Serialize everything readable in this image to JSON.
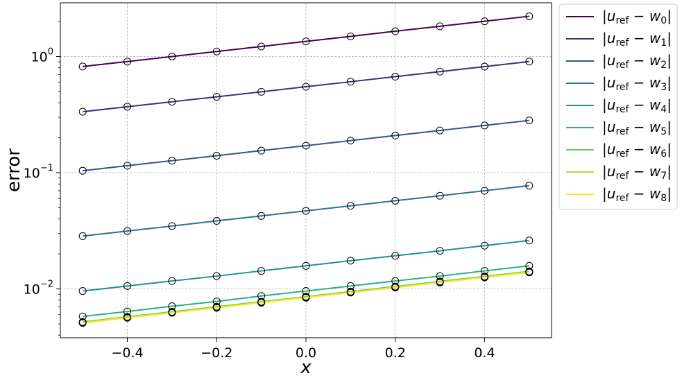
{
  "chart_data": {
    "type": "line",
    "xlabel": "x",
    "ylabel": "error",
    "yscale": "log",
    "xlim": [
      -0.55,
      0.55
    ],
    "ylim": [
      0.0038,
      2.9
    ],
    "grid": true,
    "legend_position": "outside-right",
    "xticks": [
      {
        "value": -0.4,
        "label": "−0.4"
      },
      {
        "value": -0.2,
        "label": "−0.2"
      },
      {
        "value": 0.0,
        "label": "0.0"
      },
      {
        "value": 0.2,
        "label": "0.2"
      },
      {
        "value": 0.4,
        "label": "0.4"
      }
    ],
    "yticks": [
      {
        "value": 0.01,
        "mantissa": "10",
        "exponent": "−2"
      },
      {
        "value": 0.1,
        "mantissa": "10",
        "exponent": "−1"
      },
      {
        "value": 1,
        "mantissa": "10",
        "exponent": "0"
      }
    ],
    "x": [
      -0.5,
      -0.4,
      -0.3,
      -0.2,
      -0.1,
      0.0,
      0.1,
      0.2,
      0.3,
      0.4,
      0.5
    ],
    "series": [
      {
        "index": "0",
        "color": "#440154",
        "values": [
          0.82,
          0.905,
          1.0,
          1.105,
          1.22,
          1.35,
          1.49,
          1.65,
          1.82,
          2.01,
          2.22
        ]
      },
      {
        "index": "1",
        "color": "#472d7b",
        "values": [
          0.335,
          0.37,
          0.408,
          0.45,
          0.497,
          0.55,
          0.607,
          0.671,
          0.741,
          0.819,
          0.905
        ]
      },
      {
        "index": "2",
        "color": "#3b528b",
        "values": [
          0.104,
          0.115,
          0.127,
          0.14,
          0.155,
          0.171,
          0.189,
          0.209,
          0.231,
          0.255,
          0.282
        ]
      },
      {
        "index": "3",
        "color": "#2c728e",
        "values": [
          0.0285,
          0.0315,
          0.0348,
          0.0385,
          0.0425,
          0.047,
          0.0519,
          0.0574,
          0.0634,
          0.07,
          0.0774
        ]
      },
      {
        "index": "4",
        "color": "#21918c",
        "values": [
          0.0096,
          0.0106,
          0.0117,
          0.0129,
          0.0143,
          0.0158,
          0.0175,
          0.0193,
          0.0213,
          0.0236,
          0.0261
        ]
      },
      {
        "index": "5",
        "color": "#28ae80",
        "values": [
          0.0058,
          0.0064,
          0.0071,
          0.0078,
          0.0087,
          0.0096,
          0.0106,
          0.0117,
          0.0129,
          0.0143,
          0.0158
        ]
      },
      {
        "index": "6",
        "color": "#5ec962",
        "values": [
          0.0052,
          0.00575,
          0.00636,
          0.00703,
          0.00777,
          0.00858,
          0.00949,
          0.01049,
          0.0116,
          0.01282,
          0.01416
        ]
      },
      {
        "index": "7",
        "color": "#addc30",
        "values": [
          0.00515,
          0.00569,
          0.00629,
          0.00695,
          0.00768,
          0.00849,
          0.00938,
          0.01037,
          0.01146,
          0.01267,
          0.014
        ]
      },
      {
        "index": "8",
        "color": "#fde725",
        "values": [
          0.0051,
          0.00564,
          0.00623,
          0.00689,
          0.00761,
          0.00841,
          0.0093,
          0.01028,
          0.01136,
          0.01256,
          0.01388
        ]
      }
    ],
    "legend_template": {
      "lhs": "u",
      "lhs_sub": "ref",
      "rhs": "w",
      "sep": "−"
    }
  }
}
